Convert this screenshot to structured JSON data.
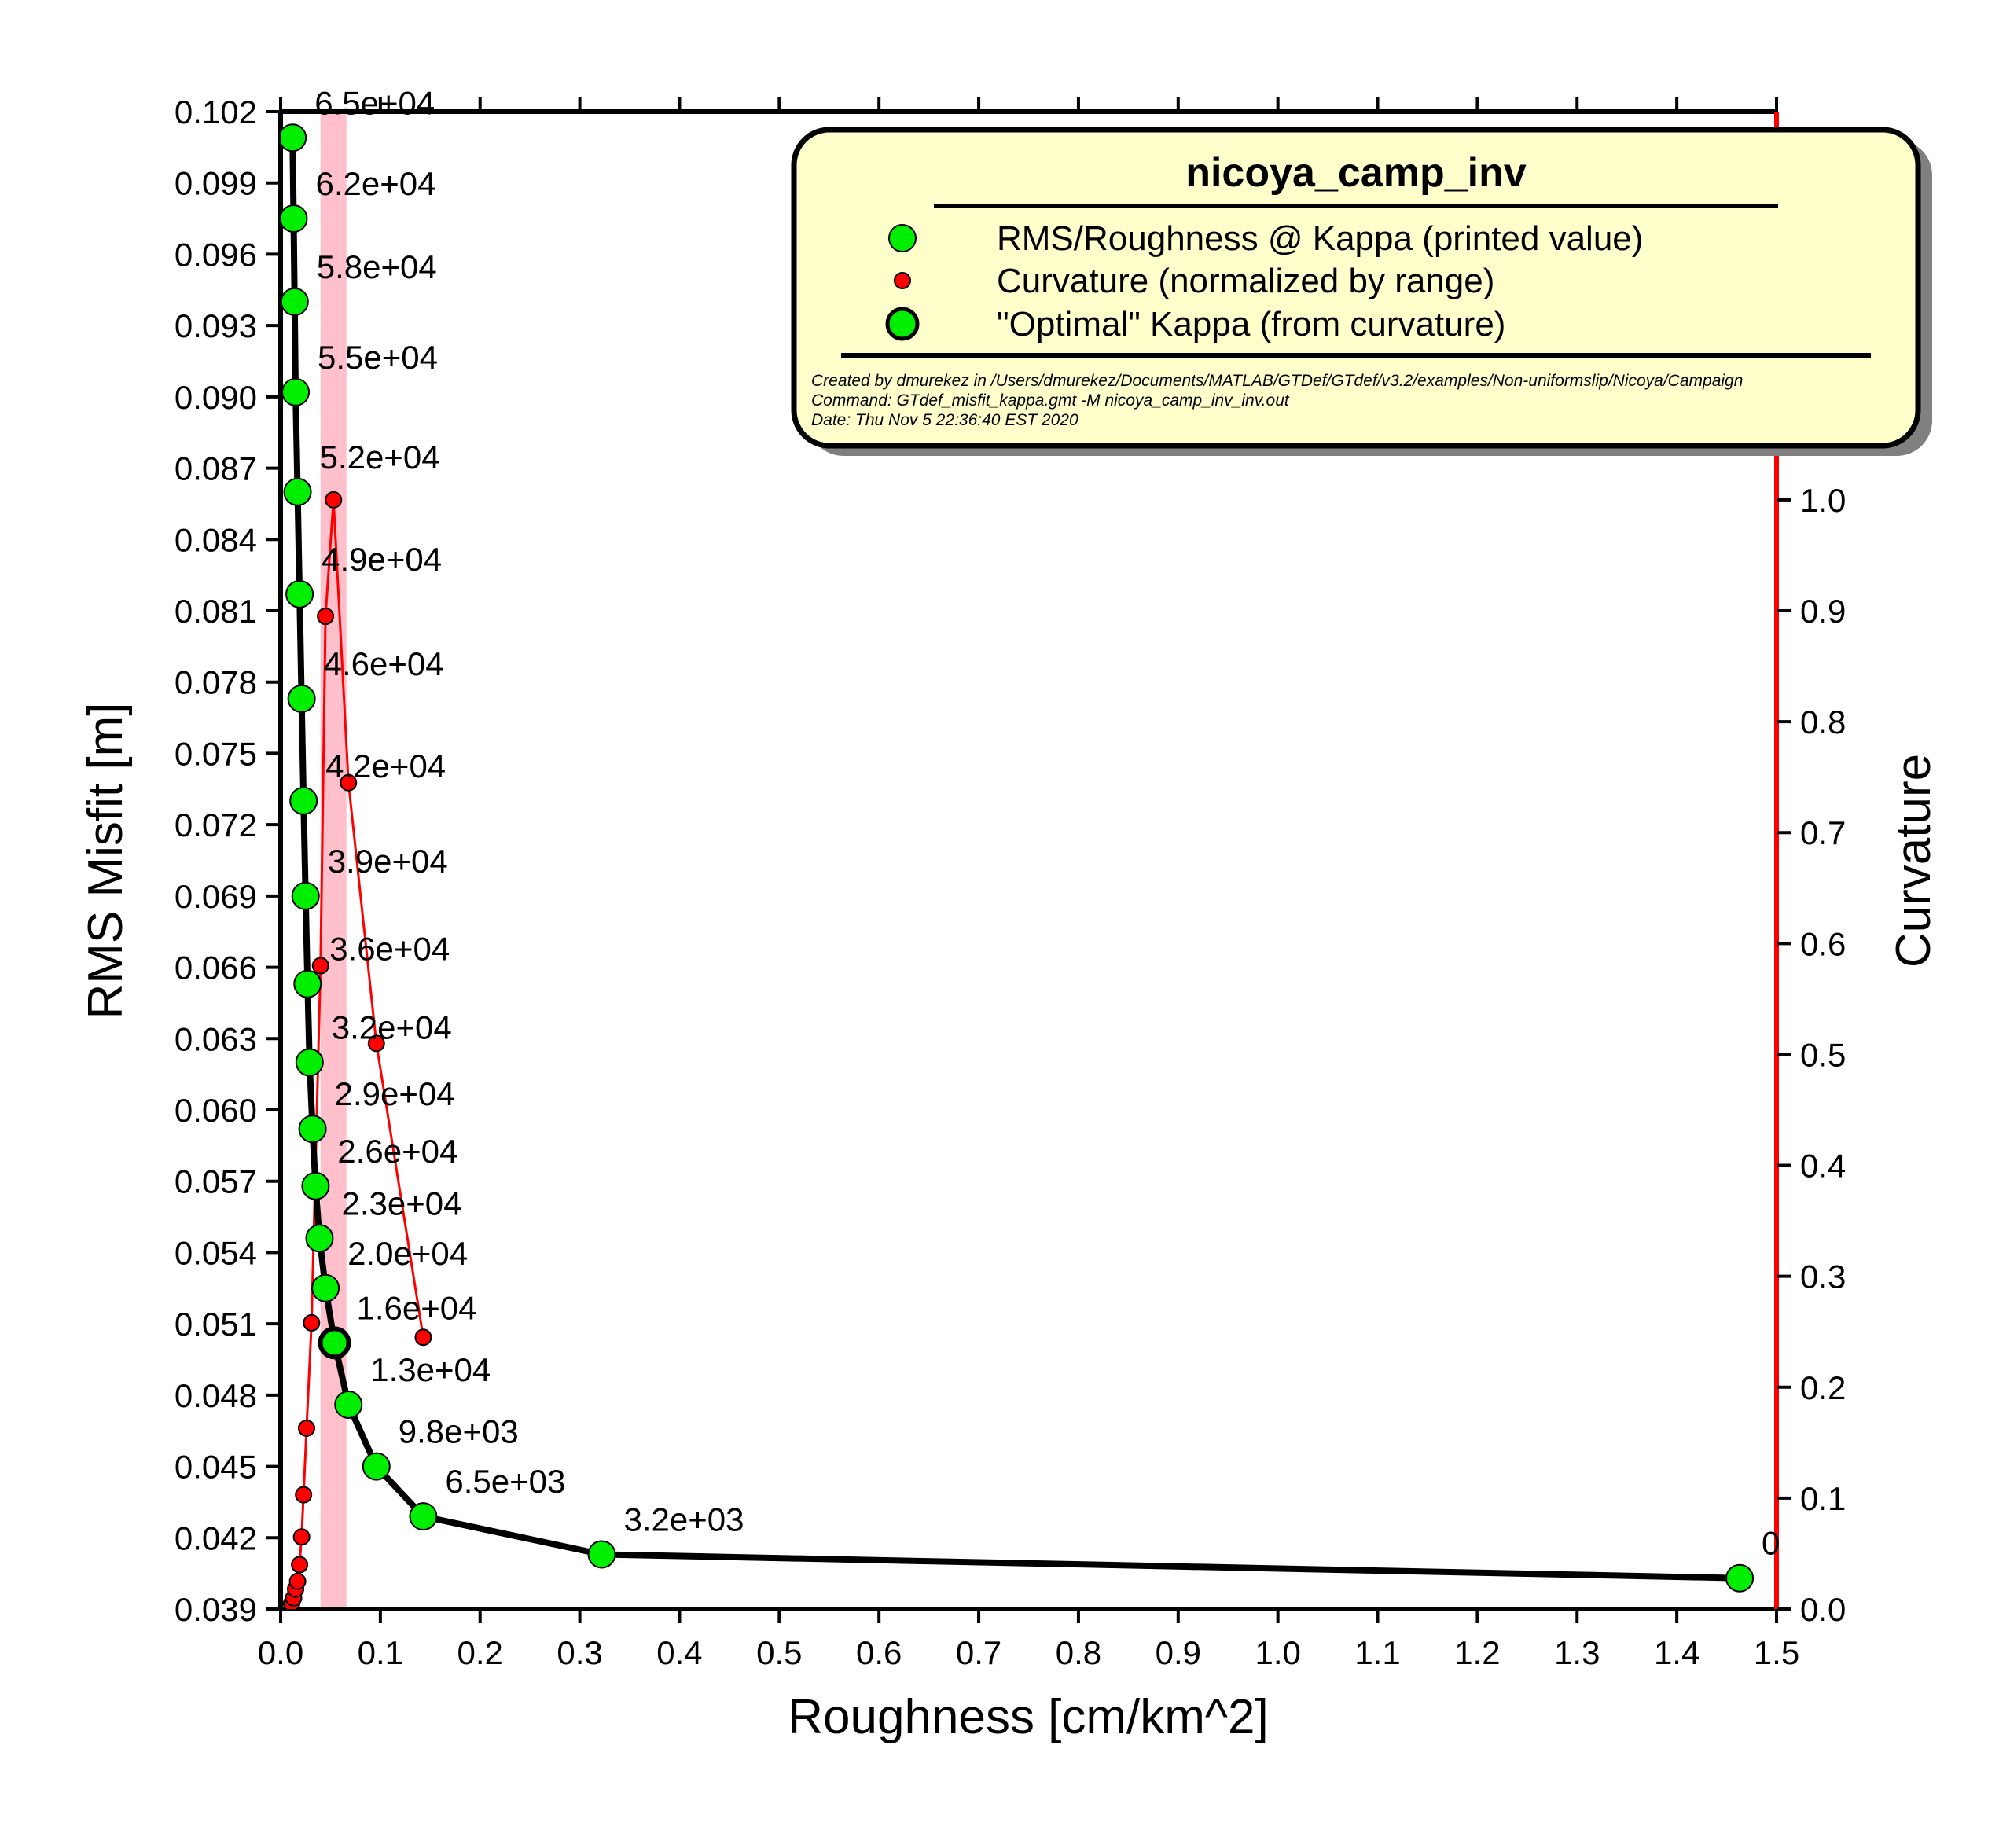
{
  "chart_data": {
    "type": "line",
    "xlabel": "Roughness [cm/km^2]",
    "ylabel": "RMS Misfit [m]",
    "y2label": "Curvature",
    "xlim": [
      0.0,
      1.5
    ],
    "ylim": [
      0.039,
      0.102
    ],
    "y2lim": [
      0.0,
      1.35
    ],
    "x_ticks": [
      "0.0",
      "0.1",
      "0.2",
      "0.3",
      "0.4",
      "0.5",
      "0.6",
      "0.7",
      "0.8",
      "0.9",
      "1.0",
      "1.1",
      "1.2",
      "1.3",
      "1.4",
      "1.5"
    ],
    "y_ticks": [
      "0.039",
      "0.042",
      "0.045",
      "0.048",
      "0.051",
      "0.054",
      "0.057",
      "0.060",
      "0.063",
      "0.066",
      "0.069",
      "0.072",
      "0.075",
      "0.078",
      "0.081",
      "0.084",
      "0.087",
      "0.090",
      "0.093",
      "0.096",
      "0.099",
      "0.102"
    ],
    "y2_ticks": [
      "0.0",
      "0.1",
      "0.2",
      "0.3",
      "0.4",
      "0.5",
      "0.6",
      "0.7",
      "0.8",
      "0.9",
      "1.0"
    ],
    "highlight_band_x": [
      0.04,
      0.066
    ],
    "colors": {
      "misfit_line": "#000000",
      "misfit_points": "#00ee00",
      "curvature": "#ff0000",
      "band": "#ffc0cb",
      "legend_bg": "#ffffcc",
      "legend_shadow": "#808080"
    },
    "series": [
      {
        "name": "RMS/Roughness @ Kappa (printed value)",
        "points": [
          {
            "x": 0.012,
            "y": 0.1009,
            "label": "6.5e+04"
          },
          {
            "x": 0.013,
            "y": 0.0975,
            "label": "6.2e+04"
          },
          {
            "x": 0.014,
            "y": 0.094,
            "label": "5.8e+04"
          },
          {
            "x": 0.015,
            "y": 0.0902,
            "label": "5.5e+04"
          },
          {
            "x": 0.017,
            "y": 0.086,
            "label": "5.2e+04"
          },
          {
            "x": 0.019,
            "y": 0.0817,
            "label": "4.9e+04"
          },
          {
            "x": 0.021,
            "y": 0.0773,
            "label": "4.6e+04"
          },
          {
            "x": 0.023,
            "y": 0.073,
            "label": "4.2e+04"
          },
          {
            "x": 0.025,
            "y": 0.069,
            "label": "3.9e+04"
          },
          {
            "x": 0.027,
            "y": 0.0653,
            "label": "3.6e+04"
          },
          {
            "x": 0.029,
            "y": 0.062,
            "label": "3.2e+04"
          },
          {
            "x": 0.032,
            "y": 0.0592,
            "label": "2.9e+04"
          },
          {
            "x": 0.035,
            "y": 0.0568,
            "label": "2.6e+04"
          },
          {
            "x": 0.039,
            "y": 0.0546,
            "label": "2.3e+04"
          },
          {
            "x": 0.045,
            "y": 0.0525,
            "label": "2.0e+04"
          },
          {
            "x": 0.054,
            "y": 0.0502,
            "label": "1.6e+04"
          },
          {
            "x": 0.068,
            "y": 0.0476,
            "label": "1.3e+04"
          },
          {
            "x": 0.096,
            "y": 0.045,
            "label": "9.8e+03"
          },
          {
            "x": 0.143,
            "y": 0.0429,
            "label": "6.5e+03"
          },
          {
            "x": 0.322,
            "y": 0.0413,
            "label": "3.2e+03"
          },
          {
            "x": 1.463,
            "y": 0.0403,
            "label": "0"
          }
        ]
      },
      {
        "name": "Curvature (normalized by range)",
        "points": [
          {
            "x": 0.011,
            "y": 0.005
          },
          {
            "x": 0.013,
            "y": 0.01
          },
          {
            "x": 0.015,
            "y": 0.018
          },
          {
            "x": 0.017,
            "y": 0.025
          },
          {
            "x": 0.019,
            "y": 0.04
          },
          {
            "x": 0.021,
            "y": 0.065
          },
          {
            "x": 0.023,
            "y": 0.103
          },
          {
            "x": 0.026,
            "y": 0.163
          },
          {
            "x": 0.031,
            "y": 0.258
          },
          {
            "x": 0.04,
            "y": 0.58
          },
          {
            "x": 0.045,
            "y": 0.895
          },
          {
            "x": 0.053,
            "y": 1.0
          },
          {
            "x": 0.068,
            "y": 0.745
          },
          {
            "x": 0.096,
            "y": 0.51
          },
          {
            "x": 0.143,
            "y": 0.245
          }
        ]
      }
    ],
    "optimal": {
      "name": "\"Optimal\" Kappa (from curvature)",
      "x": 0.054,
      "y": 0.0502
    },
    "legend": {
      "title": "nicoya_camp_inv",
      "placement": "top-right",
      "notes": [
        "Created by dmurekez in /Users/dmurekez/Documents/MATLAB/GTDef/GTdef/v3.2/examples/Non-uniformslip/Nicoya/Campaign",
        "Command: GTdef_misfit_kappa.gmt -M nicoya_camp_inv_inv.out",
        "Date: Thu Nov  5 22:36:40 EST 2020"
      ]
    }
  }
}
